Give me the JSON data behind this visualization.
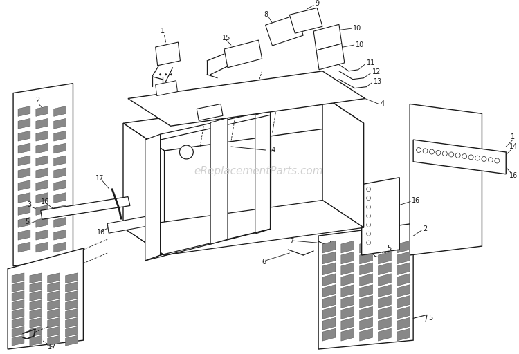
{
  "bg_color": "#ffffff",
  "lc": "#1a1a1a",
  "watermark": "eReplacementParts.com",
  "wm_color": "#c8c8c8",
  "fig_w": 7.5,
  "fig_h": 5.12,
  "dpi": 100
}
